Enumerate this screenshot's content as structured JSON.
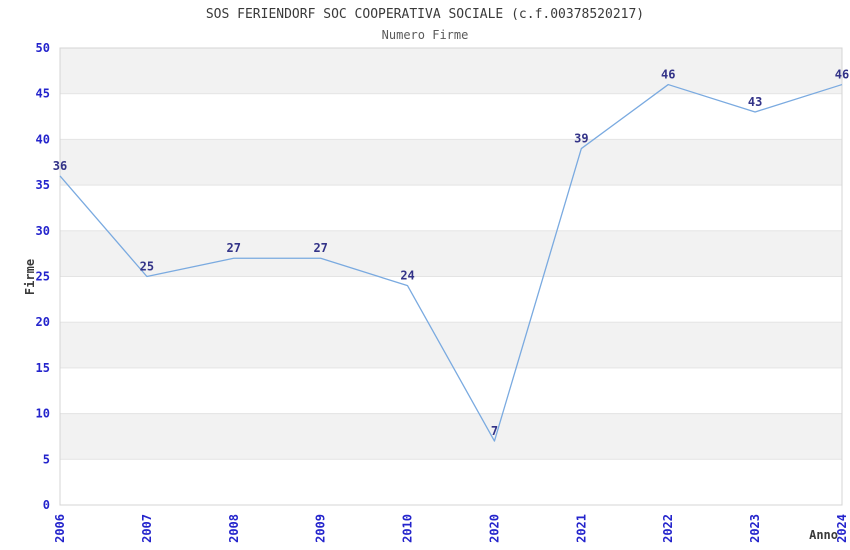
{
  "header": {
    "title": "SOS FERIENDORF SOC COOPERATIVA SOCIALE (c.f.00378520217)",
    "subtitle": "Numero Firme"
  },
  "chart_data": {
    "type": "line",
    "title": "SOS FERIENDORF SOC COOPERATIVA SOCIALE (c.f.00378520217)",
    "subtitle": "Numero Firme",
    "categories": [
      "2006",
      "2007",
      "2008",
      "2009",
      "2010",
      "2020",
      "2021",
      "2022",
      "2023",
      "2024"
    ],
    "values": [
      36,
      25,
      27,
      27,
      24,
      7,
      39,
      46,
      43,
      46
    ],
    "xlabel": "Anno",
    "ylabel": "Firme",
    "ylim": [
      0,
      50
    ],
    "ytick_step": 5,
    "yticks": [
      0,
      5,
      10,
      15,
      20,
      25,
      30,
      35,
      40,
      45,
      50
    ],
    "legend": "none",
    "grid": "alternating horizontal bands of 5 units, gray on 5-10,15-20,25-30,35-40,45-50",
    "colors": {
      "line": "#7aaae0",
      "tick_label": "#2424cc",
      "data_label": "#333388",
      "band_fill": "#f2f2f2",
      "band_edge": "#e4e4e4",
      "plot_border": "#d4d4d4",
      "title": "#3a3a3a",
      "subtitle": "#5a5a5a"
    }
  }
}
